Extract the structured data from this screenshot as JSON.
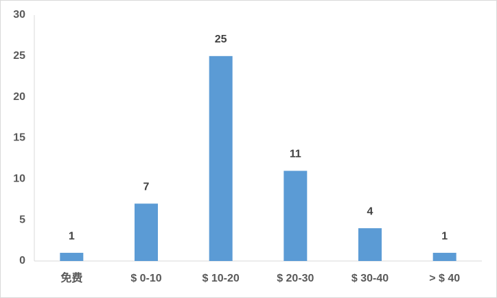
{
  "chart_data": {
    "type": "bar",
    "categories": [
      "免费",
      "$ 0-10",
      "$ 10-20",
      "$ 20-30",
      "$ 30-40",
      "> $ 40"
    ],
    "values": [
      1,
      7,
      25,
      11,
      4,
      1
    ],
    "color": "#5b9bd5",
    "ylim": [
      0,
      30
    ],
    "yticks": [
      0,
      5,
      10,
      15,
      20,
      25,
      30
    ],
    "grid": false,
    "data_labels": true
  }
}
